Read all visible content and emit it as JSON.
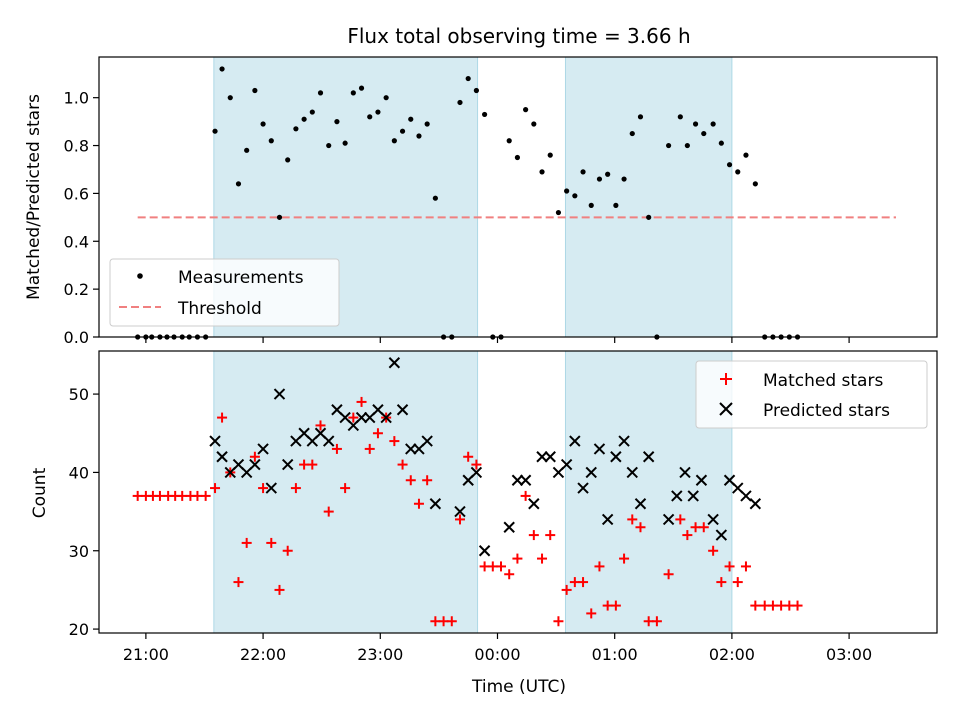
{
  "title": "Flux total observing time = 3.66 h",
  "xlabel": "Time (UTC)",
  "x_ticks": [
    "21:00",
    "22:00",
    "23:00",
    "00:00",
    "01:00",
    "02:00",
    "03:00"
  ],
  "colors": {
    "shade": "#add8e6",
    "measurements": "#000000",
    "threshold": "#f08080",
    "matched": "#ff0000",
    "predicted": "#000000"
  },
  "chart_data": [
    {
      "type": "scatter",
      "panel": "top",
      "ylabel": "Matched/Predicted stars",
      "x_unit": "hours since 21:00 UTC",
      "xlim": [
        -0.4,
        6.75
      ],
      "ylim": [
        0,
        1.17
      ],
      "y_ticks": [
        "0.0",
        "0.2",
        "0.4",
        "0.6",
        "0.8",
        "1.0"
      ],
      "legend": {
        "placement": "lower-left",
        "entries": [
          "Measurements",
          "Threshold"
        ]
      },
      "shaded_intervals": [
        [
          0.58,
          2.83
        ],
        [
          3.58,
          5.0
        ]
      ],
      "threshold": {
        "name": "Threshold",
        "y": 0.5,
        "x_range": [
          -0.07,
          6.4
        ]
      },
      "series": [
        {
          "name": "Measurements",
          "points": [
            [
              -0.07,
              0
            ],
            [
              0,
              0
            ],
            [
              0.05,
              0
            ],
            [
              0.12,
              0
            ],
            [
              0.18,
              0
            ],
            [
              0.24,
              0
            ],
            [
              0.31,
              0
            ],
            [
              0.37,
              0
            ],
            [
              0.44,
              0
            ],
            [
              0.51,
              0
            ],
            [
              0.59,
              0.86
            ],
            [
              0.65,
              1.12
            ],
            [
              0.72,
              1.0
            ],
            [
              0.79,
              0.64
            ],
            [
              0.86,
              0.78
            ],
            [
              0.93,
              1.03
            ],
            [
              1.0,
              0.89
            ],
            [
              1.07,
              0.82
            ],
            [
              1.14,
              0.5
            ],
            [
              1.21,
              0.74
            ],
            [
              1.28,
              0.87
            ],
            [
              1.35,
              0.91
            ],
            [
              1.42,
              0.94
            ],
            [
              1.49,
              1.02
            ],
            [
              1.56,
              0.8
            ],
            [
              1.63,
              0.9
            ],
            [
              1.7,
              0.81
            ],
            [
              1.77,
              1.02
            ],
            [
              1.84,
              1.04
            ],
            [
              1.91,
              0.92
            ],
            [
              1.98,
              0.94
            ],
            [
              2.05,
              1.0
            ],
            [
              2.12,
              0.82
            ],
            [
              2.19,
              0.86
            ],
            [
              2.26,
              0.91
            ],
            [
              2.33,
              0.84
            ],
            [
              2.4,
              0.89
            ],
            [
              2.47,
              0.58
            ],
            [
              2.54,
              0
            ],
            [
              2.61,
              0
            ],
            [
              2.68,
              0.98
            ],
            [
              2.75,
              1.08
            ],
            [
              2.82,
              1.03
            ],
            [
              2.89,
              0.93
            ],
            [
              2.96,
              0
            ],
            [
              3.03,
              0
            ],
            [
              3.1,
              0.82
            ],
            [
              3.17,
              0.75
            ],
            [
              3.24,
              0.95
            ],
            [
              3.31,
              0.89
            ],
            [
              3.38,
              0.69
            ],
            [
              3.45,
              0.76
            ],
            [
              3.52,
              0.52
            ],
            [
              3.59,
              0.61
            ],
            [
              3.66,
              0.59
            ],
            [
              3.73,
              0.69
            ],
            [
              3.8,
              0.55
            ],
            [
              3.87,
              0.66
            ],
            [
              3.94,
              0.68
            ],
            [
              4.01,
              0.55
            ],
            [
              4.08,
              0.66
            ],
            [
              4.15,
              0.85
            ],
            [
              4.22,
              0.92
            ],
            [
              4.29,
              0.5
            ],
            [
              4.36,
              0
            ],
            [
              4.46,
              0.8
            ],
            [
              4.56,
              0.92
            ],
            [
              4.62,
              0.8
            ],
            [
              4.69,
              0.89
            ],
            [
              4.76,
              0.85
            ],
            [
              4.84,
              0.89
            ],
            [
              4.91,
              0.81
            ],
            [
              4.98,
              0.72
            ],
            [
              5.05,
              0.69
            ],
            [
              5.12,
              0.76
            ],
            [
              5.2,
              0.64
            ],
            [
              5.28,
              0
            ],
            [
              5.35,
              0
            ],
            [
              5.42,
              0
            ],
            [
              5.49,
              0
            ],
            [
              5.56,
              0
            ]
          ]
        }
      ]
    },
    {
      "type": "scatter",
      "panel": "bottom",
      "ylabel": "Count",
      "x_unit": "hours since 21:00 UTC",
      "xlim": [
        -0.4,
        6.75
      ],
      "ylim": [
        19.5,
        55.5
      ],
      "y_ticks": [
        "20",
        "30",
        "40",
        "50"
      ],
      "legend": {
        "placement": "upper-right",
        "entries": [
          "Matched stars",
          "Predicted stars"
        ]
      },
      "shaded_intervals": [
        [
          0.58,
          2.83
        ],
        [
          3.58,
          5.0
        ]
      ],
      "series": [
        {
          "name": "Matched stars",
          "marker": "plus",
          "points": [
            [
              -0.07,
              37
            ],
            [
              0,
              37
            ],
            [
              0.06,
              37
            ],
            [
              0.12,
              37
            ],
            [
              0.19,
              37
            ],
            [
              0.25,
              37
            ],
            [
              0.31,
              37
            ],
            [
              0.38,
              37
            ],
            [
              0.44,
              37
            ],
            [
              0.51,
              37
            ],
            [
              0.59,
              38
            ],
            [
              0.65,
              47
            ],
            [
              0.72,
              40
            ],
            [
              0.79,
              26
            ],
            [
              0.86,
              31
            ],
            [
              0.93,
              42
            ],
            [
              1.0,
              38
            ],
            [
              1.07,
              31
            ],
            [
              1.14,
              25
            ],
            [
              1.21,
              30
            ],
            [
              1.28,
              38
            ],
            [
              1.35,
              41
            ],
            [
              1.42,
              41
            ],
            [
              1.49,
              46
            ],
            [
              1.56,
              35
            ],
            [
              1.63,
              43
            ],
            [
              1.7,
              38
            ],
            [
              1.77,
              47
            ],
            [
              1.84,
              49
            ],
            [
              1.91,
              43
            ],
            [
              1.98,
              45
            ],
            [
              2.05,
              47
            ],
            [
              2.12,
              44
            ],
            [
              2.19,
              41
            ],
            [
              2.26,
              39
            ],
            [
              2.33,
              36
            ],
            [
              2.4,
              39
            ],
            [
              2.47,
              21
            ],
            [
              2.54,
              21
            ],
            [
              2.61,
              21
            ],
            [
              2.68,
              34
            ],
            [
              2.75,
              42
            ],
            [
              2.82,
              41
            ],
            [
              2.89,
              28
            ],
            [
              2.96,
              28
            ],
            [
              3.03,
              28
            ],
            [
              3.1,
              27
            ],
            [
              3.17,
              29
            ],
            [
              3.24,
              37
            ],
            [
              3.31,
              32
            ],
            [
              3.38,
              29
            ],
            [
              3.45,
              32
            ],
            [
              3.52,
              21
            ],
            [
              3.59,
              25
            ],
            [
              3.66,
              26
            ],
            [
              3.73,
              26
            ],
            [
              3.8,
              22
            ],
            [
              3.87,
              28
            ],
            [
              3.94,
              23
            ],
            [
              4.01,
              23
            ],
            [
              4.08,
              29
            ],
            [
              4.15,
              34
            ],
            [
              4.22,
              33
            ],
            [
              4.29,
              21
            ],
            [
              4.36,
              21
            ],
            [
              4.46,
              27
            ],
            [
              4.56,
              34
            ],
            [
              4.62,
              32
            ],
            [
              4.69,
              33
            ],
            [
              4.76,
              33
            ],
            [
              4.84,
              30
            ],
            [
              4.91,
              26
            ],
            [
              4.98,
              28
            ],
            [
              5.05,
              26
            ],
            [
              5.12,
              28
            ],
            [
              5.2,
              23
            ],
            [
              5.28,
              23
            ],
            [
              5.35,
              23
            ],
            [
              5.42,
              23
            ],
            [
              5.49,
              23
            ],
            [
              5.56,
              23
            ]
          ]
        },
        {
          "name": "Predicted stars",
          "marker": "x",
          "points": [
            [
              0.59,
              44
            ],
            [
              0.65,
              42
            ],
            [
              0.72,
              40
            ],
            [
              0.79,
              41
            ],
            [
              0.86,
              40
            ],
            [
              0.93,
              41
            ],
            [
              1.0,
              43
            ],
            [
              1.07,
              38
            ],
            [
              1.14,
              50
            ],
            [
              1.21,
              41
            ],
            [
              1.28,
              44
            ],
            [
              1.35,
              45
            ],
            [
              1.42,
              44
            ],
            [
              1.49,
              45
            ],
            [
              1.56,
              44
            ],
            [
              1.63,
              48
            ],
            [
              1.7,
              47
            ],
            [
              1.77,
              46
            ],
            [
              1.84,
              47
            ],
            [
              1.91,
              47
            ],
            [
              1.98,
              48
            ],
            [
              2.05,
              47
            ],
            [
              2.12,
              54
            ],
            [
              2.19,
              48
            ],
            [
              2.26,
              43
            ],
            [
              2.33,
              43
            ],
            [
              2.4,
              44
            ],
            [
              2.47,
              36
            ],
            [
              2.68,
              35
            ],
            [
              2.75,
              39
            ],
            [
              2.82,
              40
            ],
            [
              2.89,
              30
            ],
            [
              3.1,
              33
            ],
            [
              3.17,
              39
            ],
            [
              3.24,
              39
            ],
            [
              3.31,
              36
            ],
            [
              3.38,
              42
            ],
            [
              3.45,
              42
            ],
            [
              3.52,
              40
            ],
            [
              3.59,
              41
            ],
            [
              3.66,
              44
            ],
            [
              3.73,
              38
            ],
            [
              3.8,
              40
            ],
            [
              3.87,
              43
            ],
            [
              3.94,
              34
            ],
            [
              4.01,
              42
            ],
            [
              4.08,
              44
            ],
            [
              4.15,
              40
            ],
            [
              4.22,
              36
            ],
            [
              4.29,
              42
            ],
            [
              4.46,
              34
            ],
            [
              4.53,
              37
            ],
            [
              4.6,
              40
            ],
            [
              4.67,
              37
            ],
            [
              4.74,
              39
            ],
            [
              4.84,
              34
            ],
            [
              4.91,
              32
            ],
            [
              4.98,
              39
            ],
            [
              5.05,
              38
            ],
            [
              5.12,
              37
            ],
            [
              5.2,
              36
            ]
          ]
        }
      ]
    }
  ]
}
